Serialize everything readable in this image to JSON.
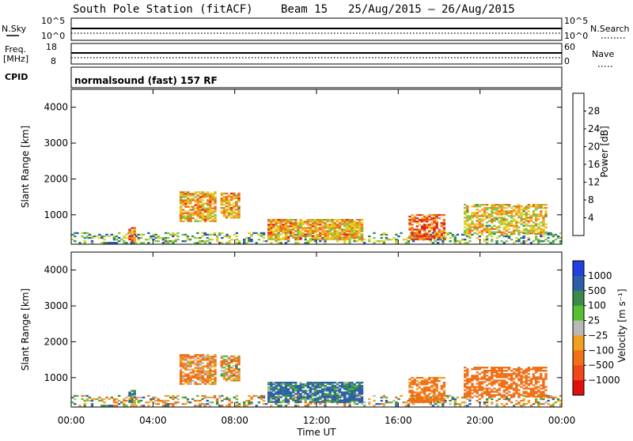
{
  "header": {
    "title": "South Pole Station (fitACF)",
    "beam": "Beam 15",
    "date_range": "25/Aug/2015 – 26/Aug/2015"
  },
  "top_panels": {
    "nsky_label": "N.Sky",
    "nsearch_label": "N.Search",
    "freq_label_1": "Freq.",
    "freq_label_2": "[MHz]",
    "nave_label": "Nave",
    "cpid_label": "CPID",
    "cpid_text": "normalsound (fast) 157 RF",
    "nsky_ticks": [
      "10^5",
      "10^0"
    ],
    "nsearch_ticks": [
      "10^5",
      "10^0"
    ],
    "freq_ticks": [
      "18",
      "8"
    ],
    "nave_ticks": [
      "60",
      "0"
    ]
  },
  "x_axis": {
    "label": "Time UT",
    "ticks": [
      "00:00",
      "04:00",
      "08:00",
      "12:00",
      "16:00",
      "20:00",
      "00:00"
    ]
  },
  "y_axis": {
    "label": "Slant Range [km]",
    "ticks": [
      "1000",
      "2000",
      "3000",
      "4000"
    ]
  },
  "power_colorbar": {
    "label": "Power [dB]",
    "ticks": [
      "4",
      "8",
      "12",
      "16",
      "20",
      "24",
      "28"
    ],
    "colors": [
      "#1a1aff",
      "#2a50b8",
      "#2e8a5a",
      "#7fc24a",
      "#e0d020",
      "#f5a21e",
      "#f06a18",
      "#e02020"
    ]
  },
  "velocity_colorbar": {
    "label": "Velocity [m s⁻¹]",
    "ticks": [
      "1000",
      "500",
      "100",
      "25",
      "−25",
      "−100",
      "−500",
      "−1000"
    ],
    "colors": [
      "#2040e0",
      "#2a60a8",
      "#3a8a4a",
      "#58c030",
      "#b8b8b8",
      "#f0a020",
      "#f07018",
      "#f04818",
      "#e01010"
    ]
  },
  "chart_data": {
    "type": "heatmap",
    "x_unit": "hours UT",
    "xlim": [
      0,
      24
    ],
    "ylim": [
      180,
      4500
    ],
    "echo_regions": [
      {
        "t0": 0.0,
        "t1": 24.0,
        "r0": 200,
        "r1": 500,
        "power": 12,
        "velocity": -20,
        "density": 0.35
      },
      {
        "t0": 2.8,
        "t1": 3.1,
        "r0": 250,
        "r1": 650,
        "power": 24,
        "velocity": 80,
        "density": 0.8
      },
      {
        "t0": 5.3,
        "t1": 7.0,
        "r0": 800,
        "r1": 1650,
        "power": 20,
        "velocity": -120,
        "density": 0.75
      },
      {
        "t0": 7.3,
        "t1": 8.2,
        "r0": 900,
        "r1": 1600,
        "power": 20,
        "velocity": -80,
        "density": 0.75
      },
      {
        "t0": 9.6,
        "t1": 14.2,
        "r0": 300,
        "r1": 850,
        "power": 20,
        "velocity": 150,
        "density": 0.8
      },
      {
        "t0": 16.5,
        "t1": 18.2,
        "r0": 300,
        "r1": 1000,
        "power": 24,
        "velocity": -200,
        "density": 0.65
      },
      {
        "t0": 19.2,
        "t1": 23.2,
        "r0": 450,
        "r1": 1300,
        "power": 18,
        "velocity": -300,
        "density": 0.6
      }
    ],
    "power_range_db": [
      0,
      30
    ],
    "velocity_range": [
      -1000,
      1000
    ]
  }
}
